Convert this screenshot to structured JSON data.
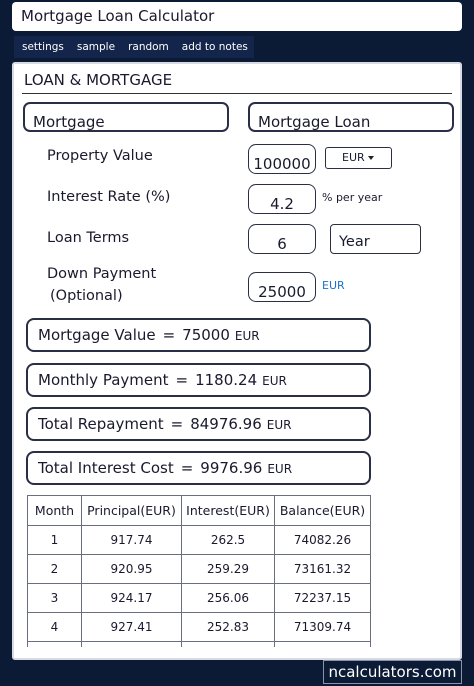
{
  "header": {
    "title": "Mortgage Loan Calculator"
  },
  "tabs": [
    "settings",
    "sample",
    "random",
    "add to notes"
  ],
  "section": {
    "title": "LOAN & MORTGAGE"
  },
  "form": {
    "type_left": "Mortgage",
    "type_right": "Mortgage Loan",
    "fields": [
      {
        "label": "Property Value",
        "value": "100000",
        "select": "EUR"
      },
      {
        "label": "Interest Rate (%)",
        "value": "4.2",
        "unit": "% per year"
      },
      {
        "label": "Loan Terms",
        "value": "6",
        "select": "Year"
      },
      {
        "label": "Down Payment",
        "label2": "(Optional)",
        "value": "25000",
        "unit": "EUR"
      }
    ]
  },
  "results": [
    {
      "label": "Mortgage Value",
      "operator": "=",
      "value": "75000",
      "unit": "EUR"
    },
    {
      "label": "Monthly Payment",
      "operator": "=",
      "value": "1180.24",
      "unit": "EUR"
    },
    {
      "label": "Total Repayment",
      "operator": "=",
      "value": "84976.96",
      "unit": "EUR"
    },
    {
      "label": "Total Interest Cost",
      "operator": "=",
      "value": "9976.96",
      "unit": "EUR"
    }
  ],
  "table": {
    "columns": [
      "Month",
      "Principal(EUR)",
      "Interest(EUR)",
      "Balance(EUR)"
    ],
    "rows": [
      [
        "1",
        "917.74",
        "262.5",
        "74082.26"
      ],
      [
        "2",
        "920.95",
        "259.29",
        "73161.32"
      ],
      [
        "3",
        "924.17",
        "256.06",
        "72237.15"
      ],
      [
        "4",
        "927.41",
        "252.83",
        "71309.74"
      ]
    ]
  },
  "footer": {
    "site": "ncalculators.com"
  }
}
